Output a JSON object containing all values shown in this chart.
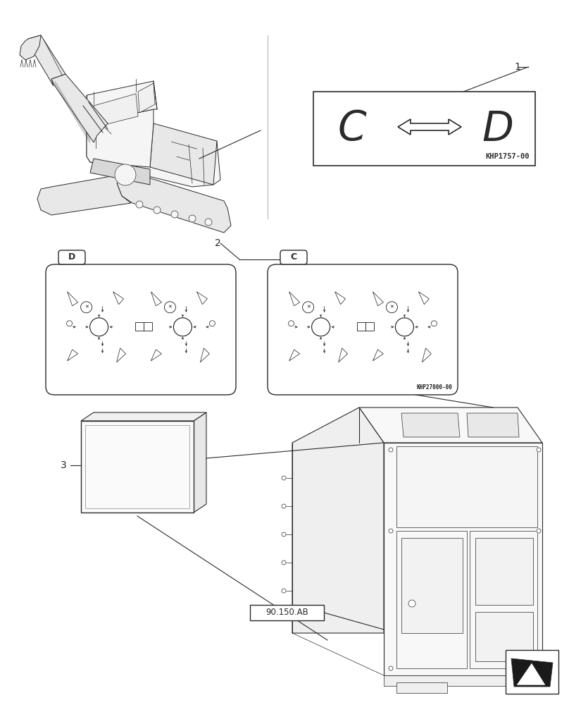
{
  "bg_color": "#ffffff",
  "line_color": "#2a2a2a",
  "item1_label": "1",
  "item1_code": "KHP1757-00",
  "item2_label": "2",
  "item2_code": "KHP27000-00",
  "item3_label": "3",
  "ref_box_text": "90.150.AB",
  "label_D": "D",
  "label_C": "C",
  "nav_arrow_color": "#1a1a1a"
}
